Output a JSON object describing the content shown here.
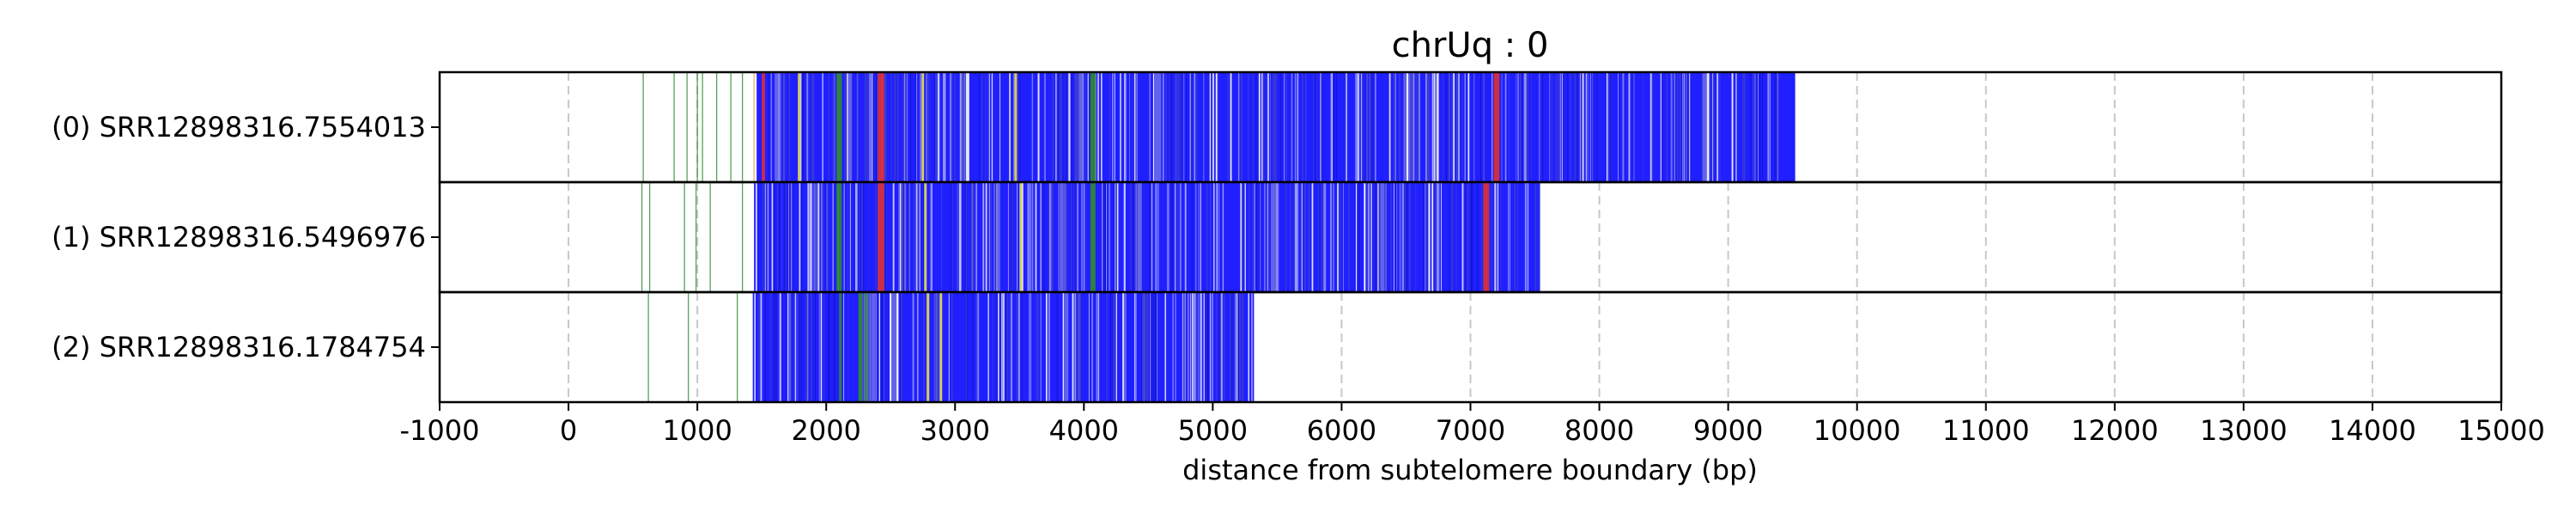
{
  "chart_data": {
    "type": "table",
    "title": "chrUq : 0",
    "xlabel": "distance from subtelomere boundary (bp)",
    "ylabel": "",
    "xlim": [
      -1000,
      15000
    ],
    "xticks": [
      -1000,
      0,
      1000,
      2000,
      3000,
      4000,
      5000,
      6000,
      7000,
      8000,
      9000,
      10000,
      11000,
      12000,
      13000,
      14000,
      15000
    ],
    "grid": "vertical dashed",
    "colors": {
      "main": "#1f1fff",
      "alt": "#3a3ad8",
      "light": "#9a9ad8",
      "red": "#e03030",
      "green": "#2e8b2e",
      "yellow": "#e8e050",
      "orange": "#e8a040",
      "grid": "#c8c8c8"
    },
    "reads": [
      {
        "label": "(0) SRR12898316.7554013",
        "span": [
          1460,
          9520
        ],
        "light_gaps": [
          [
            1600,
            1650
          ],
          [
            2150,
            2200
          ],
          [
            3050,
            3100
          ],
          [
            3950,
            4000
          ],
          [
            4550,
            4600
          ],
          [
            6480,
            6560
          ],
          [
            8800,
            8850
          ]
        ],
        "marks": [
          {
            "x": 1500,
            "w": 25,
            "color": "red"
          },
          {
            "x": 1780,
            "w": 18,
            "color": "yellow"
          },
          {
            "x": 2080,
            "w": 40,
            "color": "green"
          },
          {
            "x": 2400,
            "w": 50,
            "color": "red"
          },
          {
            "x": 2740,
            "w": 18,
            "color": "yellow"
          },
          {
            "x": 3460,
            "w": 15,
            "color": "yellow"
          },
          {
            "x": 4050,
            "w": 40,
            "color": "green"
          },
          {
            "x": 7180,
            "w": 45,
            "color": "red"
          }
        ],
        "sparse": [
          {
            "x": 580,
            "color": "green"
          },
          {
            "x": 820,
            "color": "green"
          },
          {
            "x": 920,
            "color": "green"
          },
          {
            "x": 1000,
            "color": "green"
          },
          {
            "x": 1040,
            "color": "green"
          },
          {
            "x": 1150,
            "color": "green"
          },
          {
            "x": 1260,
            "color": "green"
          },
          {
            "x": 1350,
            "color": "green"
          },
          {
            "x": 1440,
            "color": "orange"
          }
        ]
      },
      {
        "label": "(1) SRR12898316.5496976",
        "span": [
          1440,
          7540
        ],
        "light_gaps": [
          [
            1900,
            1950
          ],
          [
            2560,
            2620
          ],
          [
            3300,
            3350
          ],
          [
            3800,
            3860
          ],
          [
            4400,
            4450
          ],
          [
            5450,
            5500
          ],
          [
            6300,
            6350
          ]
        ],
        "marks": [
          {
            "x": 2080,
            "w": 40,
            "color": "green"
          },
          {
            "x": 2400,
            "w": 50,
            "color": "red"
          },
          {
            "x": 2760,
            "w": 18,
            "color": "yellow"
          },
          {
            "x": 3500,
            "w": 15,
            "color": "yellow"
          },
          {
            "x": 4050,
            "w": 40,
            "color": "green"
          },
          {
            "x": 7100,
            "w": 45,
            "color": "red"
          }
        ],
        "sparse": [
          {
            "x": 570,
            "color": "green"
          },
          {
            "x": 630,
            "color": "green"
          },
          {
            "x": 900,
            "color": "green"
          },
          {
            "x": 990,
            "color": "green"
          },
          {
            "x": 1100,
            "color": "green"
          },
          {
            "x": 1350,
            "color": "green"
          }
        ]
      },
      {
        "label": "(2) SRR12898316.1784754",
        "span": [
          1430,
          5320
        ],
        "light_gaps": [
          [
            2280,
            2380
          ],
          [
            2500,
            2560
          ],
          [
            3850,
            3880
          ],
          [
            4300,
            4330
          ]
        ],
        "marks": [
          {
            "x": 2100,
            "w": 20,
            "color": "green"
          },
          {
            "x": 2250,
            "w": 30,
            "color": "green"
          },
          {
            "x": 2300,
            "w": 20,
            "color": "green"
          },
          {
            "x": 2780,
            "w": 20,
            "color": "yellow"
          },
          {
            "x": 2880,
            "w": 15,
            "color": "yellow"
          }
        ],
        "sparse": [
          {
            "x": 620,
            "color": "green"
          },
          {
            "x": 930,
            "color": "green"
          },
          {
            "x": 1310,
            "color": "green"
          }
        ]
      }
    ]
  }
}
